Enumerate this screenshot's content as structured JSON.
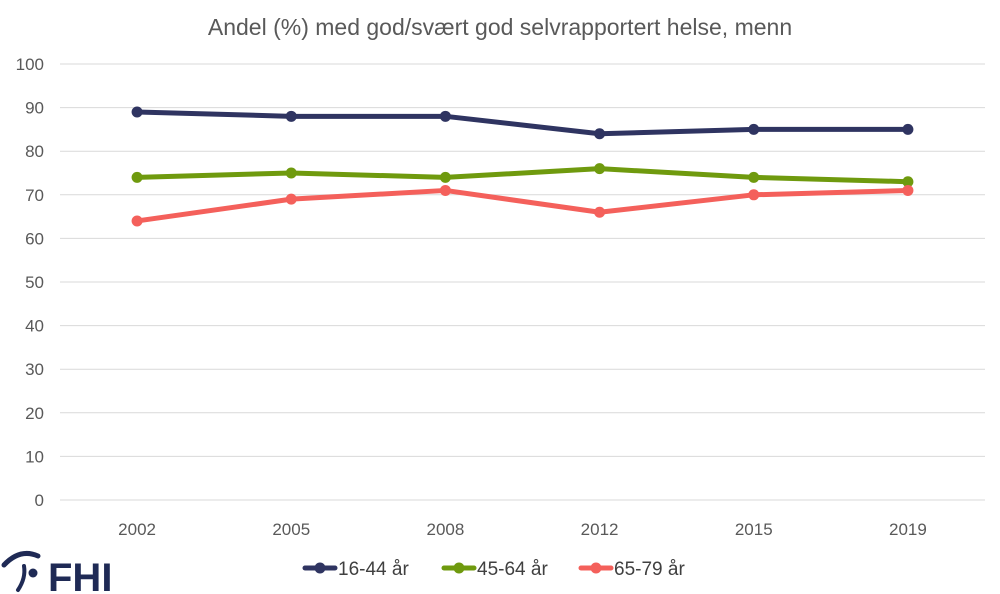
{
  "logo": {
    "text": "FHI",
    "color": "#1f2a55"
  },
  "chart_data": {
    "type": "line",
    "title": "Andel (%) med god/svært god selvrapportert helse, menn",
    "xlabel": "",
    "ylabel": "",
    "categories": [
      "2002",
      "2005",
      "2008",
      "2012",
      "2015",
      "2019"
    ],
    "ylim": [
      0,
      100
    ],
    "yticks": [
      "0",
      "10",
      "20",
      "30",
      "40",
      "50",
      "60",
      "70",
      "80",
      "90",
      "100"
    ],
    "grid": true,
    "legend_position": "bottom",
    "series": [
      {
        "name": "16-44 år",
        "color": "#2f3461",
        "values": [
          89,
          88,
          88,
          84,
          85,
          85
        ]
      },
      {
        "name": "45-64 år",
        "color": "#6f9a0e",
        "values": [
          74,
          75,
          74,
          76,
          74,
          73
        ]
      },
      {
        "name": "65-79 år",
        "color": "#f4605b",
        "values": [
          64,
          69,
          71,
          66,
          70,
          71
        ]
      }
    ]
  }
}
